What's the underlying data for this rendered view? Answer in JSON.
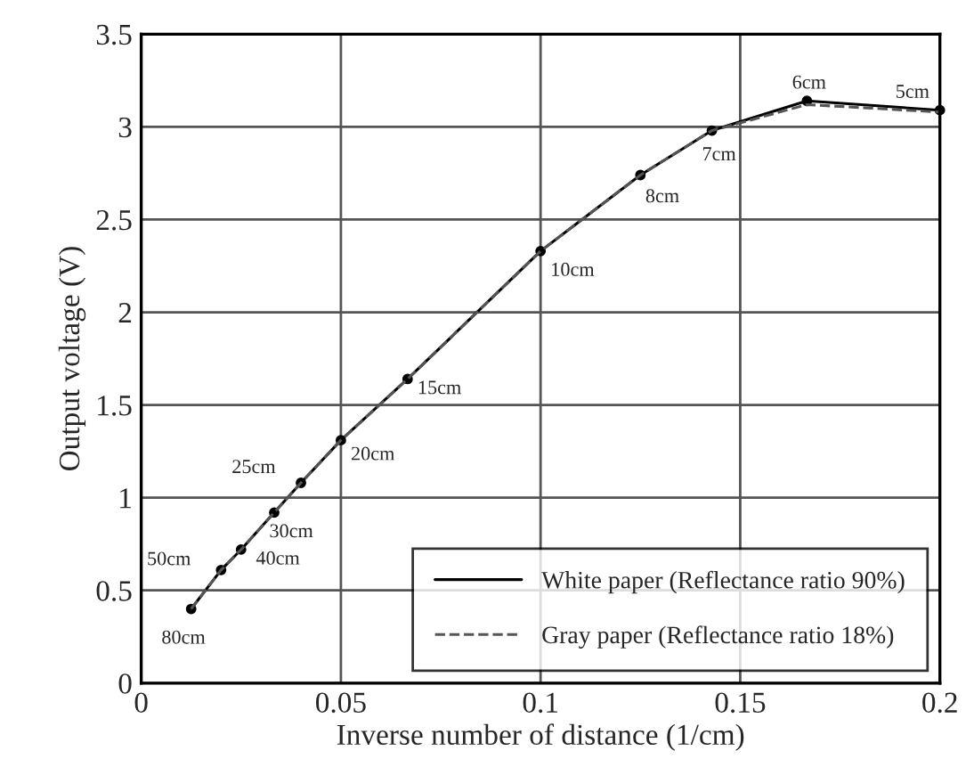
{
  "chart_data": {
    "type": "line",
    "xlabel": "Inverse number of distance (1/cm)",
    "ylabel": "Output voltage (V)",
    "xlim": [
      0,
      0.2
    ],
    "ylim": [
      0,
      3.5
    ],
    "xticks": [
      0,
      0.05,
      0.1,
      0.15,
      0.2
    ],
    "yticks": [
      0,
      0.5,
      1,
      1.5,
      2,
      2.5,
      3,
      3.5
    ],
    "grid": true,
    "legend": "bottom right",
    "x": [
      0.0125,
      0.02,
      0.025,
      0.0333,
      0.04,
      0.05,
      0.0667,
      0.1,
      0.125,
      0.1429,
      0.1667,
      0.2
    ],
    "series": [
      {
        "name": "White paper (Reflectance ratio 90%)",
        "color": "#000000",
        "line_style": "solid",
        "marker": "circle",
        "values": [
          0.4,
          0.61,
          0.72,
          0.92,
          1.08,
          1.31,
          1.64,
          2.33,
          2.74,
          2.98,
          3.14,
          3.09
        ]
      },
      {
        "name": "Gray paper (Reflectance ratio 18%)",
        "color": "#555555",
        "line_style": "dashed",
        "marker": "none",
        "values": [
          0.4,
          0.61,
          0.72,
          0.92,
          1.08,
          1.31,
          1.64,
          2.33,
          2.74,
          2.98,
          3.12,
          3.08
        ]
      }
    ],
    "annotations": [
      {
        "text": "80cm",
        "x": 0.0125,
        "y": 0.4
      },
      {
        "text": "50cm",
        "x": 0.02,
        "y": 0.61
      },
      {
        "text": "40cm",
        "x": 0.025,
        "y": 0.72
      },
      {
        "text": "30cm",
        "x": 0.0333,
        "y": 0.92
      },
      {
        "text": "25cm",
        "x": 0.04,
        "y": 1.08
      },
      {
        "text": "20cm",
        "x": 0.05,
        "y": 1.31
      },
      {
        "text": "15cm",
        "x": 0.0667,
        "y": 1.64
      },
      {
        "text": "10cm",
        "x": 0.1,
        "y": 2.33
      },
      {
        "text": "8cm",
        "x": 0.125,
        "y": 2.74
      },
      {
        "text": "7cm",
        "x": 0.1429,
        "y": 2.98
      },
      {
        "text": "6cm",
        "x": 0.1667,
        "y": 3.14
      },
      {
        "text": "5cm",
        "x": 0.2,
        "y": 3.09
      }
    ]
  }
}
